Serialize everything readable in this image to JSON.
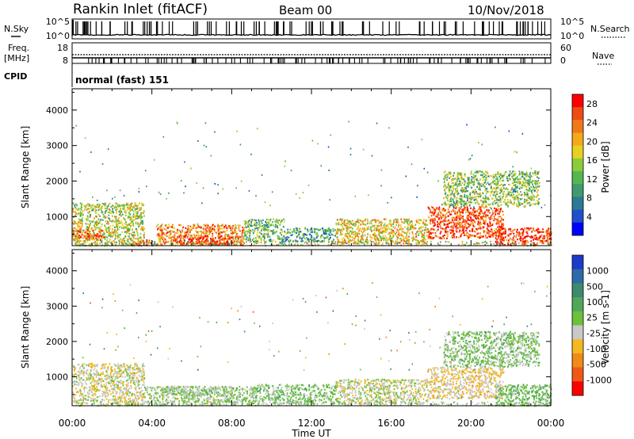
{
  "header": {
    "title": "Rankin Inlet (fitACF)",
    "beam": "Beam 00",
    "date": "10/Nov/2018"
  },
  "status_panels": {
    "nsky": {
      "label": "N.Sky",
      "left_ticks": [
        "10^5",
        "10^0"
      ],
      "right_ticks": [
        "10^5",
        "10^0"
      ],
      "right_label": "N.Search"
    },
    "freq": {
      "label_line1": "Freq.",
      "label_line2": "[MHz]",
      "left_ticks": [
        "18",
        "8"
      ],
      "right_ticks": [
        "60",
        "0"
      ],
      "right_label": "Nave"
    },
    "cpid": {
      "label": "CPID",
      "value": "normal (fast) 151"
    }
  },
  "chart_data": [
    {
      "type": "heatmap",
      "parameter": "Power",
      "ylabel": "Slant Range [km]",
      "xlabel": "",
      "x_ticks": [
        "00:00",
        "04:00",
        "08:00",
        "12:00",
        "16:00",
        "20:00",
        "00:00"
      ],
      "x_range_hours": [
        0,
        24
      ],
      "y_ticks": [
        1000,
        2000,
        3000,
        4000
      ],
      "ylim": [
        180,
        4600
      ],
      "colorbar": {
        "label": "Power [dB]",
        "ticks": [
          "4",
          "8",
          "12",
          "16",
          "20",
          "24",
          "28"
        ],
        "range": [
          0,
          30
        ],
        "colors": [
          "#0000ff",
          "#2050c8",
          "#2a7a96",
          "#3f9a6e",
          "#55b84f",
          "#8ccc3c",
          "#e8d020",
          "#f4a81a",
          "#f07818",
          "#ee4a14",
          "#ff0000"
        ]
      },
      "echo_regions": [
        {
          "t_start": 0.0,
          "t_end": 3.6,
          "r_low": 200,
          "r_high": 1400,
          "value": 16
        },
        {
          "t_start": 0.0,
          "t_end": 1.6,
          "r_low": 350,
          "r_high": 650,
          "value": 24
        },
        {
          "t_start": 3.0,
          "t_end": 4.2,
          "r_low": 200,
          "r_high": 360,
          "value": 26
        },
        {
          "t_start": 4.2,
          "t_end": 8.6,
          "r_low": 220,
          "r_high": 800,
          "value": 22
        },
        {
          "t_start": 5.0,
          "t_end": 8.0,
          "r_low": 230,
          "r_high": 480,
          "value": 28
        },
        {
          "t_start": 8.6,
          "t_end": 10.6,
          "r_low": 300,
          "r_high": 950,
          "value": 12
        },
        {
          "t_start": 10.6,
          "t_end": 13.2,
          "r_low": 300,
          "r_high": 700,
          "value": 10
        },
        {
          "t_start": 13.2,
          "t_end": 17.8,
          "r_low": 250,
          "r_high": 950,
          "value": 18
        },
        {
          "t_start": 17.8,
          "t_end": 21.6,
          "r_low": 400,
          "r_high": 1300,
          "value": 26
        },
        {
          "t_start": 21.2,
          "t_end": 24.0,
          "r_low": 200,
          "r_high": 700,
          "value": 27
        },
        {
          "t_start": 18.6,
          "t_end": 23.4,
          "r_low": 1300,
          "r_high": 2300,
          "value": 14
        }
      ]
    },
    {
      "type": "heatmap",
      "parameter": "Velocity",
      "ylabel": "Slant Range [km]",
      "xlabel": "Time UT",
      "x_ticks": [
        "00:00",
        "04:00",
        "08:00",
        "12:00",
        "16:00",
        "20:00",
        "00:00"
      ],
      "x_range_hours": [
        0,
        24
      ],
      "y_ticks": [
        1000,
        2000,
        3000,
        4000
      ],
      "ylim": [
        180,
        4600
      ],
      "colorbar": {
        "label": "Velocity [m s-1]",
        "ticks": [
          "1000",
          "500",
          "100",
          "25",
          "-25",
          "-100",
          "-500",
          "-1000"
        ],
        "range": [
          -1200,
          1200
        ],
        "colors": [
          "#1a3cc8",
          "#2c6aa8",
          "#3d8a6e",
          "#4ea858",
          "#6cc03c",
          "#c8c8c8",
          "#f4b820",
          "#f08a18",
          "#ee5a14",
          "#ff0000"
        ]
      },
      "echo_regions": [
        {
          "t_start": 0.0,
          "t_end": 3.6,
          "r_low": 200,
          "r_high": 1400,
          "value": -150
        },
        {
          "t_start": 3.6,
          "t_end": 9.0,
          "r_low": 220,
          "r_high": 750,
          "value": 0
        },
        {
          "t_start": 4.4,
          "t_end": 8.0,
          "r_low": 500,
          "r_high": 750,
          "value": 20
        },
        {
          "t_start": 9.0,
          "t_end": 13.2,
          "r_low": 250,
          "r_high": 800,
          "value": 100
        },
        {
          "t_start": 13.2,
          "t_end": 17.8,
          "r_low": 250,
          "r_high": 950,
          "value": -100
        },
        {
          "t_start": 17.8,
          "t_end": 21.6,
          "r_low": 400,
          "r_high": 1300,
          "value": -250
        },
        {
          "t_start": 21.2,
          "t_end": 24.0,
          "r_low": 200,
          "r_high": 800,
          "value": 150
        },
        {
          "t_start": 18.6,
          "t_end": 23.4,
          "r_low": 1300,
          "r_high": 2300,
          "value": 80
        }
      ]
    }
  ]
}
